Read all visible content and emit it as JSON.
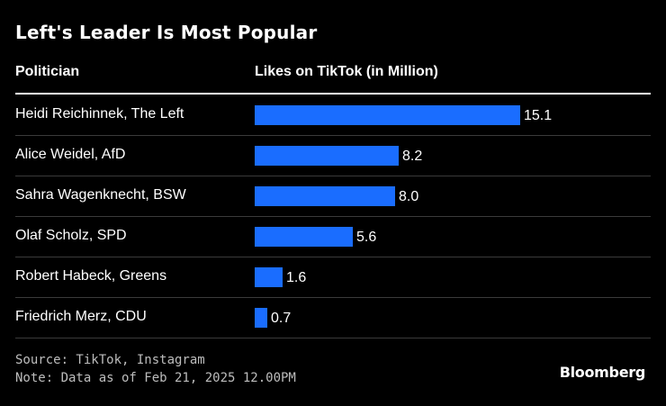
{
  "chart_data": {
    "type": "bar",
    "orientation": "horizontal",
    "title": "Left's Leader Is Most Popular",
    "column_headers": {
      "label": "Politician",
      "value": "Likes on TikTok (in Million)"
    },
    "categories": [
      "Heidi Reichinnek, The Left",
      "Alice Weidel, AfD",
      "Sahra Wagenknecht, BSW",
      "Olaf Scholz, SPD",
      "Robert Habeck, Greens",
      "Friedrich Merz, CDU"
    ],
    "values": [
      15.1,
      8.2,
      8.0,
      5.6,
      1.6,
      0.7
    ],
    "value_labels": [
      "15.1",
      "8.2",
      "8.0",
      "5.6",
      "1.6",
      "0.7"
    ],
    "xlim": [
      0,
      15.1
    ],
    "bar_color": "#1a6dff"
  },
  "footer": {
    "source": "Source: TikTok, Instagram",
    "note": "Note: Data as of Feb 21, 2025 12.00PM",
    "brand": "Bloomberg"
  }
}
